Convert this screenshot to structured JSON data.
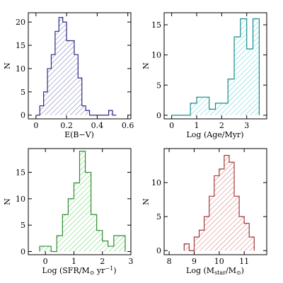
{
  "chart_data": [
    {
      "type": "bar",
      "histogram": true,
      "xlabel": "E(B−V)",
      "ylabel": "N",
      "xlim": [
        -0.05,
        0.62
      ],
      "ylim": [
        -0.8,
        22
      ],
      "xticks": [
        0,
        0.2,
        0.4,
        0.6
      ],
      "xtick_labels": [
        "0",
        "0.2",
        "0.4",
        "0.6"
      ],
      "yticks": [
        0,
        5,
        10,
        15,
        20
      ],
      "ytick_labels": [
        "0",
        "5",
        "10",
        "15",
        "20"
      ],
      "bin_edges": [
        0.0,
        0.025,
        0.05,
        0.075,
        0.1,
        0.125,
        0.15,
        0.175,
        0.2,
        0.225,
        0.25,
        0.275,
        0.3,
        0.325,
        0.35,
        0.375,
        0.4,
        0.425,
        0.45,
        0.475,
        0.5,
        0.525
      ],
      "counts": [
        0,
        2,
        5,
        10,
        13,
        18,
        21,
        20,
        16,
        16,
        13,
        8,
        2,
        1,
        0,
        0,
        0,
        0,
        0,
        1,
        0
      ],
      "color": "#2b2b80",
      "hatch": "#6b6bb5"
    },
    {
      "type": "bar",
      "histogram": true,
      "xlabel": "Log (Age/Myr)",
      "ylabel": "N",
      "xlim": [
        -0.3,
        3.8
      ],
      "ylim": [
        -0.6,
        17
      ],
      "xticks": [
        0,
        1,
        2,
        3
      ],
      "xtick_labels": [
        "0",
        "1",
        "2",
        "3"
      ],
      "yticks": [
        0,
        5,
        10,
        15
      ],
      "ytick_labels": [
        "0",
        "5",
        "10",
        "15"
      ],
      "bin_edges": [
        0.0,
        0.25,
        0.5,
        0.75,
        1.0,
        1.25,
        1.5,
        1.75,
        2.0,
        2.25,
        2.5,
        2.75,
        3.0,
        3.25,
        3.5
      ],
      "counts": [
        0,
        0,
        0,
        2,
        3,
        3,
        1,
        2,
        2,
        6,
        13,
        16,
        11,
        16
      ],
      "color": "#1a8a8a",
      "hatch": "#4fd0d0"
    },
    {
      "type": "bar",
      "histogram": true,
      "xlabel": "Log (SFR/M⊙ yr⁻¹)",
      "ylabel": "N",
      "xlim": [
        -0.6,
        3.0
      ],
      "ylim": [
        -0.6,
        19.5
      ],
      "xticks": [
        0,
        1,
        2,
        3
      ],
      "xtick_labels": [
        "0",
        "1",
        "2",
        "3"
      ],
      "yticks": [
        0,
        5,
        10,
        15
      ],
      "ytick_labels": [
        "0",
        "5",
        "10",
        "15"
      ],
      "bin_edges": [
        -0.2,
        0.0,
        0.2,
        0.4,
        0.6,
        0.8,
        1.0,
        1.2,
        1.4,
        1.6,
        1.8,
        2.0,
        2.2,
        2.4,
        2.6,
        2.8
      ],
      "counts": [
        1,
        1,
        0,
        3,
        7,
        10,
        13,
        19,
        15,
        7,
        4,
        2,
        1,
        3,
        3
      ],
      "color": "#2f8a2f",
      "hatch": "#55cc55"
    },
    {
      "type": "bar",
      "histogram": true,
      "xlabel": "Log (M_star/M⊙)",
      "ylabel": "N",
      "xlim": [
        7.8,
        11.9
      ],
      "ylim": [
        -0.6,
        15
      ],
      "xticks": [
        8,
        9,
        10,
        11
      ],
      "xtick_labels": [
        "8",
        "9",
        "10",
        "11"
      ],
      "yticks": [
        0,
        5,
        10
      ],
      "ytick_labels": [
        "0",
        "5",
        "10"
      ],
      "bin_edges": [
        8.6,
        8.8,
        9.0,
        9.2,
        9.4,
        9.6,
        9.8,
        10.0,
        10.2,
        10.4,
        10.6,
        10.8,
        11.0,
        11.2,
        11.4
      ],
      "counts": [
        1,
        0,
        2,
        3,
        5,
        8,
        11,
        12,
        14,
        13,
        8,
        5,
        4,
        2
      ],
      "color": "#a33a3a",
      "hatch": "#d06a6a"
    }
  ]
}
